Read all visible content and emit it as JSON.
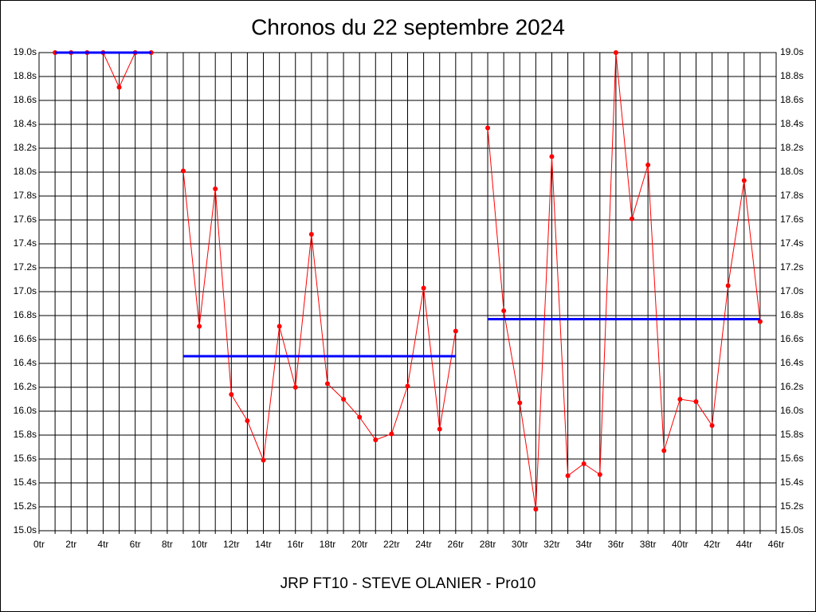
{
  "chart_data": {
    "type": "line",
    "title": "Chronos du 22 septembre 2024",
    "xlabel": "JRP FT10 - STEVE OLANIER - Pro10",
    "xlim": [
      0,
      46
    ],
    "xticks": [
      {
        "value": 0,
        "label": "0tr"
      },
      {
        "value": 2,
        "label": "2tr"
      },
      {
        "value": 4,
        "label": "4tr"
      },
      {
        "value": 6,
        "label": "6tr"
      },
      {
        "value": 8,
        "label": "8tr"
      },
      {
        "value": 10,
        "label": "10tr"
      },
      {
        "value": 12,
        "label": "12tr"
      },
      {
        "value": 14,
        "label": "14tr"
      },
      {
        "value": 16,
        "label": "16tr"
      },
      {
        "value": 18,
        "label": "18tr"
      },
      {
        "value": 20,
        "label": "20tr"
      },
      {
        "value": 22,
        "label": "22tr"
      },
      {
        "value": 24,
        "label": "24tr"
      },
      {
        "value": 26,
        "label": "26tr"
      },
      {
        "value": 28,
        "label": "28tr"
      },
      {
        "value": 30,
        "label": "30tr"
      },
      {
        "value": 32,
        "label": "32tr"
      },
      {
        "value": 34,
        "label": "34tr"
      },
      {
        "value": 36,
        "label": "36tr"
      },
      {
        "value": 38,
        "label": "38tr"
      },
      {
        "value": 40,
        "label": "40tr"
      },
      {
        "value": 42,
        "label": "42tr"
      },
      {
        "value": 44,
        "label": "44tr"
      },
      {
        "value": 46,
        "label": "46tr"
      }
    ],
    "xminorticks": [
      1,
      3,
      5,
      7,
      9,
      11,
      13,
      15,
      17,
      19,
      21,
      23,
      25,
      27,
      29,
      31,
      33,
      35,
      37,
      39,
      41,
      43,
      45
    ],
    "ylim": [
      15.0,
      19.0
    ],
    "yticks": [
      {
        "value": 15.0,
        "label": "15.0s"
      },
      {
        "value": 15.2,
        "label": "15.2s"
      },
      {
        "value": 15.4,
        "label": "15.4s"
      },
      {
        "value": 15.6,
        "label": "15.6s"
      },
      {
        "value": 15.8,
        "label": "15.8s"
      },
      {
        "value": 16.0,
        "label": "16.0s"
      },
      {
        "value": 16.2,
        "label": "16.2s"
      },
      {
        "value": 16.4,
        "label": "16.4s"
      },
      {
        "value": 16.6,
        "label": "16.6s"
      },
      {
        "value": 16.8,
        "label": "16.8s"
      },
      {
        "value": 17.0,
        "label": "17.0s"
      },
      {
        "value": 17.2,
        "label": "17.2s"
      },
      {
        "value": 17.4,
        "label": "17.4s"
      },
      {
        "value": 17.6,
        "label": "17.6s"
      },
      {
        "value": 17.8,
        "label": "17.8s"
      },
      {
        "value": 18.0,
        "label": "18.0s"
      },
      {
        "value": 18.2,
        "label": "18.2s"
      },
      {
        "value": 18.4,
        "label": "18.4s"
      },
      {
        "value": 18.6,
        "label": "18.6s"
      },
      {
        "value": 18.8,
        "label": "18.8s"
      },
      {
        "value": 19.0,
        "label": "19.0s"
      }
    ],
    "grid": true,
    "series": [
      {
        "color": "#ff0000",
        "markers": true,
        "x": [
          1,
          2,
          3,
          4,
          5,
          6,
          7,
          8,
          9,
          10,
          11,
          12,
          13,
          14,
          15,
          16,
          17,
          18,
          19,
          20,
          21,
          22,
          23,
          24,
          25,
          26,
          27,
          28,
          29,
          30,
          31,
          32,
          33,
          34,
          35,
          36,
          37,
          38,
          39,
          40,
          41,
          42,
          43,
          44,
          45
        ],
        "values": [
          19.0,
          19.0,
          19.0,
          19.0,
          18.71,
          19.0,
          19.0,
          null,
          18.01,
          16.71,
          17.86,
          16.14,
          15.92,
          15.59,
          16.71,
          16.2,
          17.48,
          16.23,
          16.1,
          15.95,
          15.76,
          15.81,
          16.21,
          17.03,
          15.85,
          16.67,
          null,
          18.37,
          16.84,
          16.07,
          15.18,
          18.13,
          15.46,
          15.56,
          15.47,
          19.0,
          17.61,
          18.06,
          15.67,
          16.1,
          16.08,
          15.88,
          17.05,
          17.93,
          16.75
        ]
      },
      {
        "color": "#0000ff",
        "markers": false,
        "x": [
          1,
          7
        ],
        "values": [
          19.0,
          19.0
        ]
      },
      {
        "color": "#0000ff",
        "markers": false,
        "x": [
          9,
          26
        ],
        "values": [
          16.46,
          16.46
        ]
      },
      {
        "color": "#0000ff",
        "markers": false,
        "x": [
          28,
          45
        ],
        "values": [
          16.77,
          16.77
        ]
      }
    ]
  }
}
